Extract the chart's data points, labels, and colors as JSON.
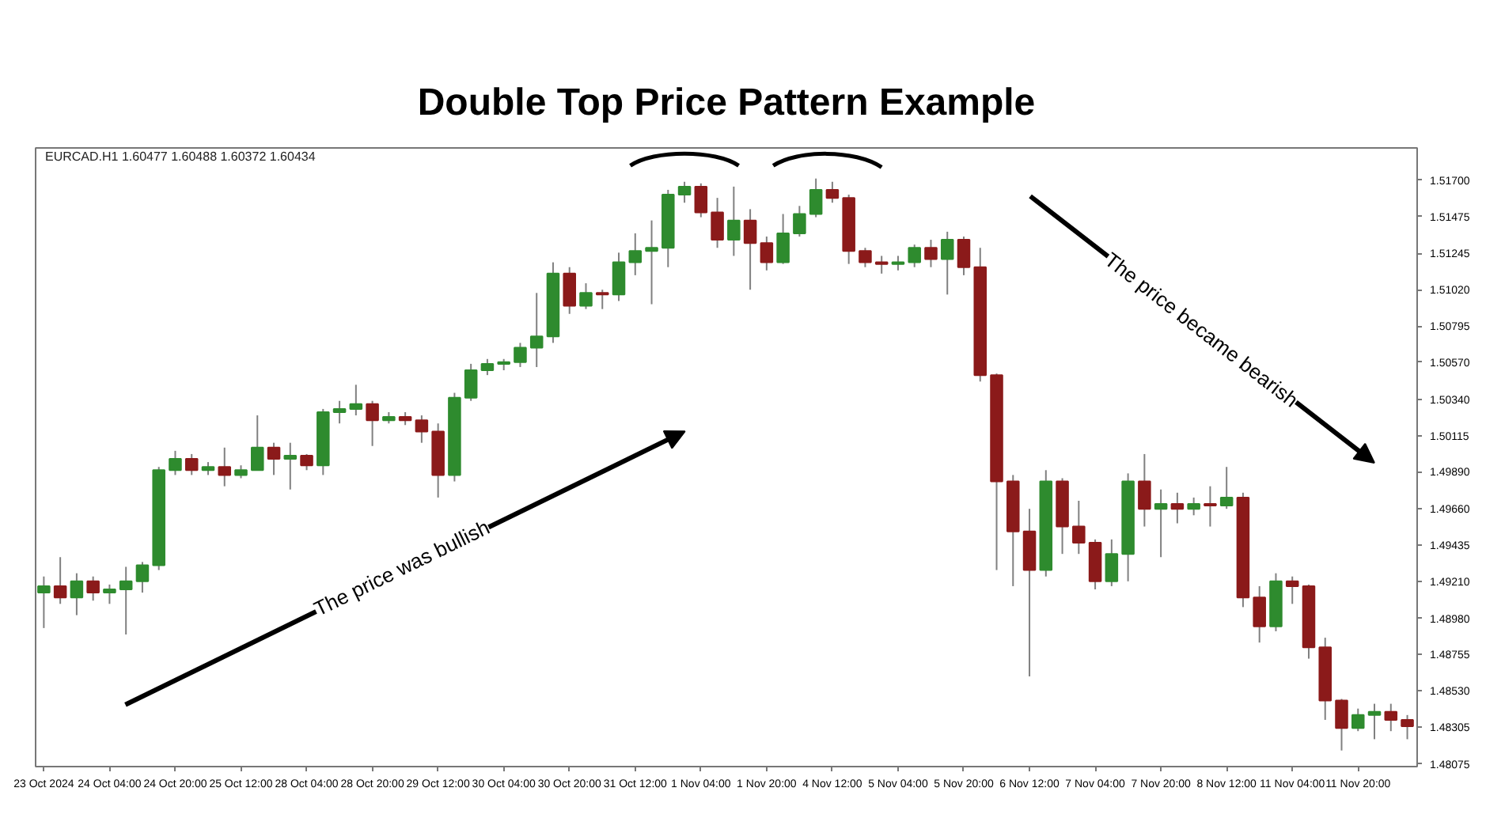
{
  "chart_data": {
    "type": "candlestick",
    "title": "Double Top Price Pattern Example",
    "annotations": [
      "EURCAD.H1  1.60477 1.60488 1.60372 1.60434",
      "The price was bullish",
      "The price became bearish"
    ],
    "categories": [
      "23 Oct 2024",
      null,
      null,
      null,
      "24 Oct 04:00",
      null,
      null,
      null,
      "24 Oct 20:00",
      null,
      null,
      null,
      "25 Oct 12:00",
      null,
      null,
      null,
      "28 Oct 04:00",
      null,
      null,
      null,
      "28 Oct 20:00",
      null,
      null,
      null,
      "29 Oct 12:00",
      null,
      null,
      null,
      "30 Oct 04:00",
      null,
      null,
      null,
      "30 Oct 20:00",
      null,
      null,
      null,
      "31 Oct 12:00",
      null,
      null,
      null,
      "1 Nov 04:00",
      null,
      null,
      null,
      "1 Nov 20:00",
      null,
      null,
      null,
      "4 Nov 12:00",
      null,
      null,
      null,
      "5 Nov 04:00",
      null,
      null,
      null,
      "5 Nov 20:00",
      null,
      null,
      null,
      "6 Nov 12:00",
      null,
      null,
      null,
      "7 Nov 04:00",
      null,
      null,
      null,
      "7 Nov 20:00",
      null,
      null,
      null,
      "8 Nov 12:00",
      null,
      null,
      null,
      "11 Nov 04:00",
      null,
      null,
      null,
      "11 Nov 20:00",
      null,
      null,
      null
    ],
    "ohlc": [
      [
        1.4914,
        1.4924,
        1.4892,
        1.4918
      ],
      [
        1.4918,
        1.4936,
        1.4907,
        1.4911
      ],
      [
        1.4911,
        1.4926,
        1.49,
        1.4921
      ],
      [
        1.4921,
        1.4924,
        1.4909,
        1.4914
      ],
      [
        1.4914,
        1.4919,
        1.4907,
        1.4916
      ],
      [
        1.4916,
        1.493,
        1.4888,
        1.4921
      ],
      [
        1.4921,
        1.4933,
        1.4914,
        1.4931
      ],
      [
        1.4931,
        1.4992,
        1.4928,
        1.499
      ],
      [
        1.499,
        1.5002,
        1.4987,
        1.4997
      ],
      [
        1.4997,
        1.5,
        1.4987,
        1.499
      ],
      [
        1.499,
        1.4995,
        1.4987,
        1.4992
      ],
      [
        1.4992,
        1.5004,
        1.498,
        1.4987
      ],
      [
        1.4987,
        1.4993,
        1.4985,
        1.499
      ],
      [
        1.499,
        1.5024,
        1.499,
        1.5004
      ],
      [
        1.5004,
        1.5007,
        1.4987,
        1.4997
      ],
      [
        1.4997,
        1.5007,
        1.4978,
        1.4999
      ],
      [
        1.4999,
        1.5,
        1.499,
        1.4993
      ],
      [
        1.4993,
        1.5028,
        1.4987,
        1.5026
      ],
      [
        1.5026,
        1.5033,
        1.5019,
        1.5028
      ],
      [
        1.5028,
        1.5043,
        1.5024,
        1.5031
      ],
      [
        1.5031,
        1.5033,
        1.5005,
        1.5021
      ],
      [
        1.5021,
        1.5026,
        1.5019,
        1.5023
      ],
      [
        1.5023,
        1.5026,
        1.5018,
        1.5021
      ],
      [
        1.5021,
        1.5024,
        1.5007,
        1.5014
      ],
      [
        1.5014,
        1.5019,
        1.4973,
        1.4987
      ],
      [
        1.4987,
        1.5038,
        1.4983,
        1.5035
      ],
      [
        1.5035,
        1.5056,
        1.5033,
        1.5052
      ],
      [
        1.5052,
        1.5059,
        1.5049,
        1.5056
      ],
      [
        1.5056,
        1.5059,
        1.5052,
        1.5057
      ],
      [
        1.5057,
        1.5069,
        1.5054,
        1.5066
      ],
      [
        1.5066,
        1.51,
        1.5054,
        1.5073
      ],
      [
        1.5073,
        1.5119,
        1.5069,
        1.5112
      ],
      [
        1.5112,
        1.5116,
        1.5087,
        1.5092
      ],
      [
        1.5092,
        1.5106,
        1.509,
        1.51
      ],
      [
        1.51,
        1.5102,
        1.509,
        1.5099
      ],
      [
        1.5099,
        1.5125,
        1.5095,
        1.5119
      ],
      [
        1.5119,
        1.5137,
        1.5111,
        1.5126
      ],
      [
        1.5126,
        1.5145,
        1.5093,
        1.5128
      ],
      [
        1.5128,
        1.5164,
        1.5116,
        1.5161
      ],
      [
        1.5161,
        1.5169,
        1.5156,
        1.5166
      ],
      [
        1.5166,
        1.5168,
        1.5147,
        1.515
      ],
      [
        1.515,
        1.5159,
        1.5128,
        1.5133
      ],
      [
        1.5133,
        1.5166,
        1.5123,
        1.5145
      ],
      [
        1.5145,
        1.5152,
        1.5102,
        1.5131
      ],
      [
        1.5131,
        1.5135,
        1.5114,
        1.5119
      ],
      [
        1.5119,
        1.5149,
        1.5118,
        1.5137
      ],
      [
        1.5137,
        1.5154,
        1.5135,
        1.5149
      ],
      [
        1.5149,
        1.5171,
        1.5147,
        1.5164
      ],
      [
        1.5164,
        1.5169,
        1.5156,
        1.5159
      ],
      [
        1.5159,
        1.5161,
        1.5118,
        1.5126
      ],
      [
        1.5126,
        1.5128,
        1.5116,
        1.5119
      ],
      [
        1.5119,
        1.5123,
        1.5112,
        1.5118
      ],
      [
        1.5118,
        1.5123,
        1.5114,
        1.5119
      ],
      [
        1.5119,
        1.513,
        1.5116,
        1.5128
      ],
      [
        1.5128,
        1.5133,
        1.5116,
        1.5121
      ],
      [
        1.5121,
        1.5138,
        1.5099,
        1.5133
      ],
      [
        1.5133,
        1.5135,
        1.5111,
        1.5116
      ],
      [
        1.5116,
        1.5128,
        1.5045,
        1.5049
      ],
      [
        1.5049,
        1.505,
        1.4928,
        1.4983
      ],
      [
        1.4983,
        1.4987,
        1.4918,
        1.4952
      ],
      [
        1.4952,
        1.4966,
        1.4862,
        1.4928
      ],
      [
        1.4928,
        1.499,
        1.4924,
        1.4983
      ],
      [
        1.4983,
        1.4985,
        1.4938,
        1.4955
      ],
      [
        1.4955,
        1.4971,
        1.4938,
        1.4945
      ],
      [
        1.4945,
        1.4947,
        1.4916,
        1.4921
      ],
      [
        1.4921,
        1.4947,
        1.4918,
        1.4938
      ],
      [
        1.4938,
        1.4988,
        1.4921,
        1.4983
      ],
      [
        1.4983,
        1.5,
        1.4955,
        1.4966
      ],
      [
        1.4966,
        1.4978,
        1.4936,
        1.4969
      ],
      [
        1.4969,
        1.4976,
        1.4957,
        1.4966
      ],
      [
        1.4966,
        1.4973,
        1.4962,
        1.4969
      ],
      [
        1.4969,
        1.498,
        1.4955,
        1.4968
      ],
      [
        1.4968,
        1.4992,
        1.4966,
        1.4973
      ],
      [
        1.4973,
        1.4976,
        1.4905,
        1.4911
      ],
      [
        1.4911,
        1.4918,
        1.4883,
        1.4893
      ],
      [
        1.4893,
        1.4926,
        1.489,
        1.4921
      ],
      [
        1.4921,
        1.4924,
        1.4907,
        1.4918
      ],
      [
        1.4918,
        1.4919,
        1.4873,
        1.488
      ],
      [
        1.488,
        1.4886,
        1.4835,
        1.4847
      ],
      [
        1.4847,
        1.4848,
        1.4816,
        1.483
      ],
      [
        1.483,
        1.4842,
        1.4828,
        1.4838
      ],
      [
        1.4838,
        1.4845,
        1.4823,
        1.484
      ],
      [
        1.484,
        1.4845,
        1.4828,
        1.4835
      ],
      [
        1.4835,
        1.4838,
        1.4823,
        1.4831
      ]
    ],
    "colors": [
      "#2e8b2e",
      "#8b1a1a",
      "#2e8b2e",
      "#8b1a1a",
      "#2e8b2e",
      "#2e8b2e",
      "#2e8b2e",
      "#2e8b2e",
      "#2e8b2e",
      "#8b1a1a",
      "#2e8b2e",
      "#8b1a1a",
      "#2e8b2e",
      "#2e8b2e",
      "#8b1a1a",
      "#2e8b2e",
      "#8b1a1a",
      "#2e8b2e",
      "#2e8b2e",
      "#2e8b2e",
      "#8b1a1a",
      "#2e8b2e",
      "#8b1a1a",
      "#8b1a1a",
      "#8b1a1a",
      "#2e8b2e",
      "#2e8b2e",
      "#2e8b2e",
      "#2e8b2e",
      "#2e8b2e",
      "#2e8b2e",
      "#2e8b2e",
      "#8b1a1a",
      "#2e8b2e",
      "#8b1a1a",
      "#2e8b2e",
      "#2e8b2e",
      "#2e8b2e",
      "#2e8b2e",
      "#2e8b2e",
      "#8b1a1a",
      "#8b1a1a",
      "#2e8b2e",
      "#8b1a1a",
      "#8b1a1a",
      "#2e8b2e",
      "#2e8b2e",
      "#2e8b2e",
      "#8b1a1a",
      "#8b1a1a",
      "#8b1a1a",
      "#8b1a1a",
      "#2e8b2e",
      "#2e8b2e",
      "#8b1a1a",
      "#2e8b2e",
      "#8b1a1a",
      "#8b1a1a",
      "#8b1a1a",
      "#8b1a1a",
      "#8b1a1a",
      "#2e8b2e",
      "#8b1a1a",
      "#8b1a1a",
      "#8b1a1a",
      "#2e8b2e",
      "#2e8b2e",
      "#8b1a1a",
      "#2e8b2e",
      "#8b1a1a",
      "#2e8b2e",
      "#8b1a1a",
      "#2e8b2e",
      "#8b1a1a",
      "#8b1a1a",
      "#2e8b2e",
      "#8b1a1a",
      "#8b1a1a",
      "#8b1a1a",
      "#8b1a1a",
      "#2e8b2e",
      "#2e8b2e",
      "#8b1a1a",
      "#8b1a1a"
    ],
    "ylim": [
      1.4806,
      1.519
    ],
    "yticks": [
      {
        "value": 1.517,
        "label": "1.51700"
      },
      {
        "value": 1.51475,
        "label": "1.51475"
      },
      {
        "value": 1.51245,
        "label": "1.51245"
      },
      {
        "value": 1.5102,
        "label": "1.51020"
      },
      {
        "value": 1.50795,
        "label": "1.50795"
      },
      {
        "value": 1.5057,
        "label": "1.50570"
      },
      {
        "value": 1.5034,
        "label": "1.50340"
      },
      {
        "value": 1.50115,
        "label": "1.50115"
      },
      {
        "value": 1.4989,
        "label": "1.49890"
      },
      {
        "value": 1.4966,
        "label": "1.49660"
      },
      {
        "value": 1.49435,
        "label": "1.49435"
      },
      {
        "value": 1.4921,
        "label": "1.49210"
      },
      {
        "value": 1.4898,
        "label": "1.48980"
      },
      {
        "value": 1.48755,
        "label": "1.48755"
      },
      {
        "value": 1.4853,
        "label": "1.48530"
      },
      {
        "value": 1.48305,
        "label": "1.48305"
      },
      {
        "value": 1.48075,
        "label": "1.48075"
      }
    ]
  }
}
